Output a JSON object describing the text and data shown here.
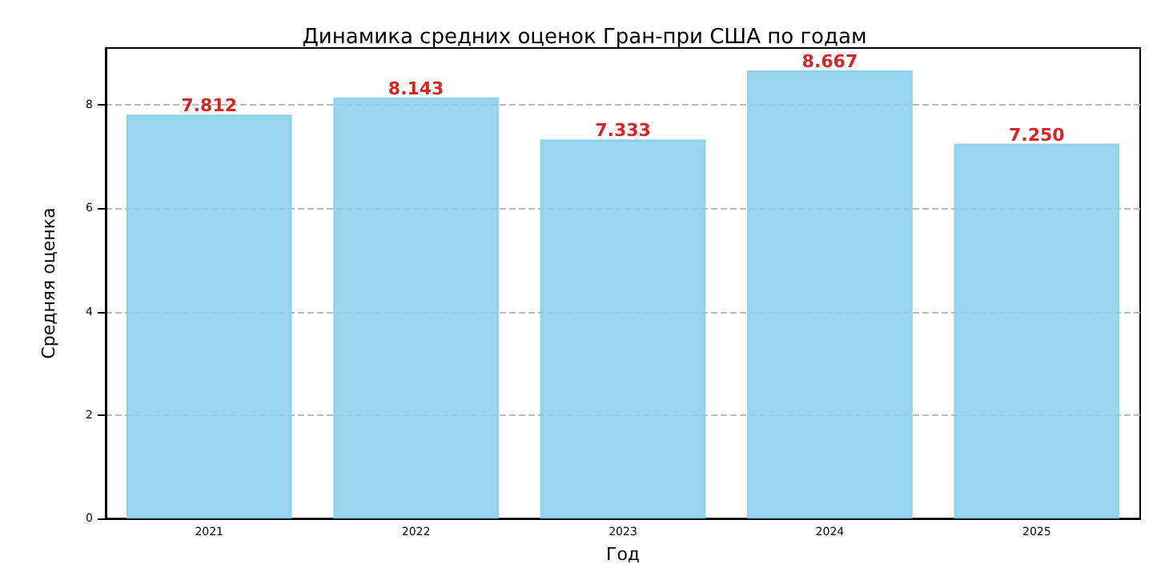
{
  "chart_data": {
    "type": "bar",
    "title": "Динамика средних оценок Гран-при США по годам",
    "xlabel": "Год",
    "ylabel": "Средняя оценка",
    "categories": [
      "2021",
      "2022",
      "2023",
      "2024",
      "2025"
    ],
    "values": [
      7.812,
      8.143,
      7.333,
      8.667,
      7.25
    ],
    "value_labels": [
      "7.812",
      "8.143",
      "7.333",
      "8.667",
      "7.250"
    ],
    "color": "#87ceeb",
    "ylim": [
      0,
      9.1
    ],
    "yticks": [
      0,
      2,
      4,
      6,
      8
    ],
    "grid": "y"
  }
}
